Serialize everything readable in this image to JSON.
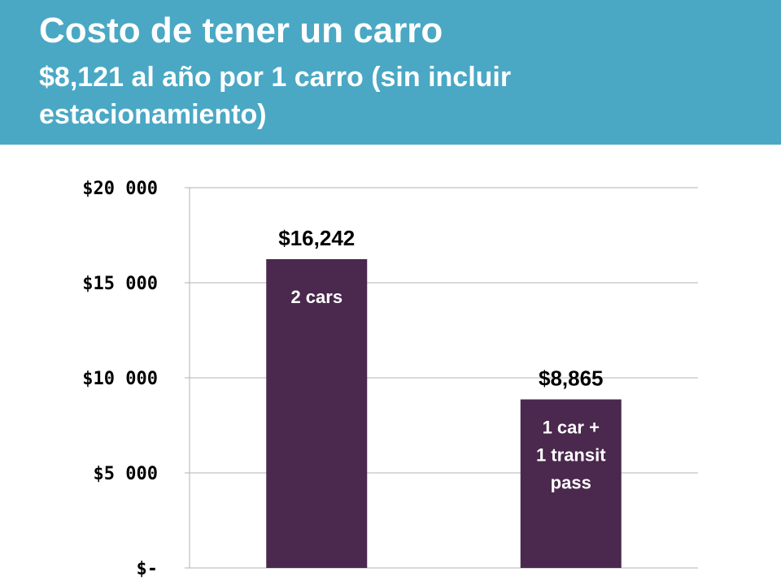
{
  "header": {
    "title": "Costo de tener un carro",
    "subtitle": "$8,121 al año por 1 carro (sin incluir estacionamiento)"
  },
  "colors": {
    "banner": "#4aa8c4",
    "bar": "#4b284e",
    "grid": "#b3b3b3"
  },
  "chart_data": {
    "type": "bar",
    "categories": [
      "2 cars",
      "1 car + 1 transit pass"
    ],
    "values": [
      16242,
      8865
    ],
    "data_labels": [
      "$16,242",
      "$8,865"
    ],
    "bar_labels": [
      [
        "2 cars"
      ],
      [
        "1 car +",
        "1 transit",
        "pass"
      ]
    ],
    "y_ticks": [
      0,
      5000,
      10000,
      15000,
      20000
    ],
    "y_tick_labels": [
      "$-",
      "$5 000",
      "$10 000",
      "$15 000",
      "$20 000"
    ],
    "ylim": [
      0,
      20000
    ],
    "title": "",
    "xlabel": "",
    "ylabel": "",
    "grid": true,
    "legend": "none"
  }
}
